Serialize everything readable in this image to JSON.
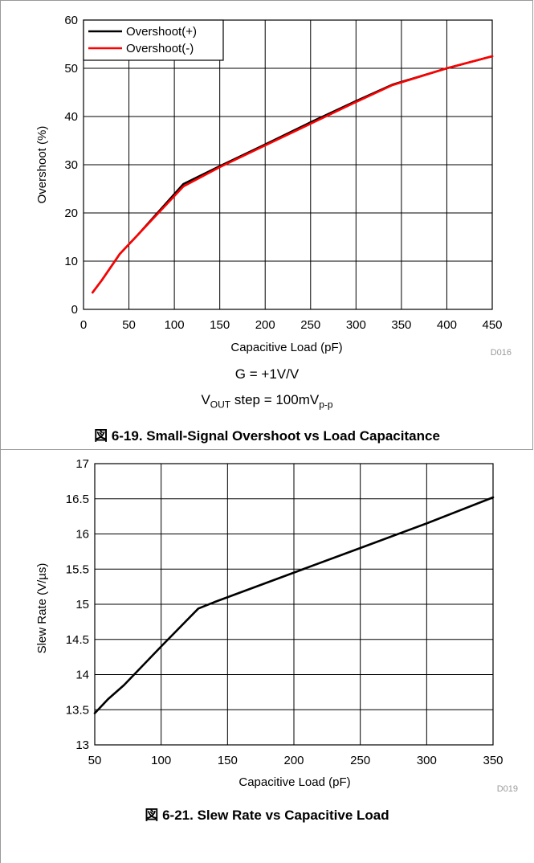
{
  "chart_data": [
    {
      "type": "line",
      "xlabel": "Capacitive Load (pF)",
      "ylabel": "Overshoot (%)",
      "xlim": [
        0,
        450
      ],
      "ylim": [
        0,
        60
      ],
      "x_ticks": [
        "0",
        "50",
        "100",
        "150",
        "200",
        "250",
        "300",
        "350",
        "400",
        "450"
      ],
      "y_ticks": [
        "0",
        "10",
        "20",
        "30",
        "40",
        "50",
        "60"
      ],
      "grid": true,
      "legend": "top-left",
      "code": "D016",
      "conditions": [
        "G = +1V/V",
        "V_OUT step = 100mV_p-p"
      ],
      "caption": "図 6-19. Small-Signal Overshoot vs Load Capacitance",
      "series": [
        {
          "name": "Overshoot(+)",
          "color": "#000000",
          "x": [
            10,
            20,
            40,
            60,
            110,
            150,
            200,
            250,
            300,
            340,
            400,
            450
          ],
          "y": [
            3.5,
            6.0,
            11.5,
            15.5,
            26.0,
            29.7,
            34.2,
            38.8,
            43.2,
            46.6,
            50.0,
            52.5
          ]
        },
        {
          "name": "Overshoot(-)",
          "color": "#ff0000",
          "x": [
            10,
            20,
            40,
            60,
            110,
            150,
            200,
            250,
            300,
            340,
            400,
            450
          ],
          "y": [
            3.5,
            6.0,
            11.5,
            15.5,
            25.5,
            29.5,
            34.0,
            38.5,
            43.0,
            46.5,
            50.0,
            52.5
          ]
        }
      ]
    },
    {
      "type": "line",
      "xlabel": "Capacitive Load (pF)",
      "ylabel": "Slew Rate (V/µs)",
      "xlim": [
        50,
        350
      ],
      "ylim": [
        13,
        17
      ],
      "x_ticks": [
        "50",
        "100",
        "150",
        "200",
        "250",
        "300",
        "350"
      ],
      "y_ticks": [
        "13",
        "13.5",
        "14",
        "14.5",
        "15",
        "15.5",
        "16",
        "16.5",
        "17"
      ],
      "grid": true,
      "code": "D019",
      "caption": "図 6-21. Slew Rate vs Capacitive Load",
      "series": [
        {
          "color": "#000000",
          "x": [
            50,
            60,
            72,
            100,
            128,
            140,
            200,
            250,
            300,
            350
          ],
          "y": [
            13.45,
            13.65,
            13.85,
            14.4,
            14.94,
            15.03,
            15.45,
            15.8,
            16.15,
            16.52
          ]
        }
      ]
    }
  ]
}
